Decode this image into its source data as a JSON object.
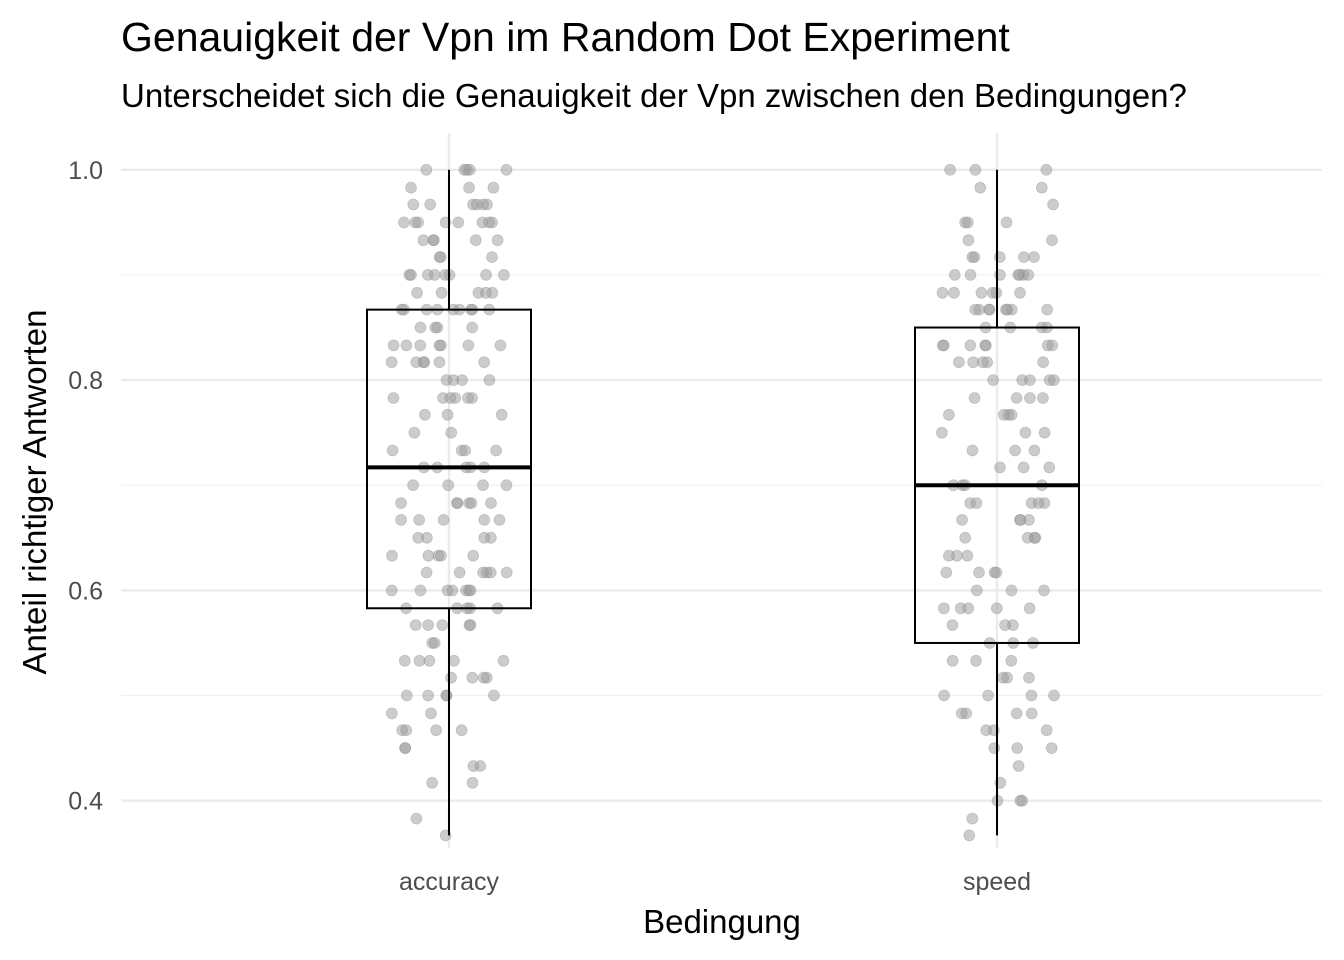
{
  "chart_data": {
    "type": "boxplot",
    "title": "Genauigkeit der Vpn im Random Dot Experiment",
    "subtitle": "Unterscheidet sich die Genauigkeit der Vpn zwischen den Bedingungen?",
    "xlabel": "Bedingung",
    "ylabel": "Anteil richtiger Antworten",
    "ylim": [
      0.355,
      1.035
    ],
    "yticks": [
      0.4,
      0.6,
      0.8,
      1.0
    ],
    "ytick_labels": [
      "0.4",
      "0.6",
      "0.8",
      "1.0"
    ],
    "categories": [
      "accuracy",
      "speed"
    ],
    "grid": true,
    "boxes": [
      {
        "category": "accuracy",
        "min": 0.367,
        "q1": 0.583,
        "median": 0.717,
        "q3": 0.867,
        "max": 1.0
      },
      {
        "category": "speed",
        "min": 0.367,
        "q1": 0.55,
        "median": 0.7,
        "q3": 0.85,
        "max": 1.0
      }
    ],
    "points": {
      "accuracy": [
        1.0,
        1.0,
        1.0,
        1.0,
        1.0,
        0.983,
        0.983,
        0.983,
        0.967,
        0.967,
        0.967,
        0.967,
        0.967,
        0.967,
        0.95,
        0.95,
        0.95,
        0.95,
        0.95,
        0.95,
        0.95,
        0.95,
        0.933,
        0.933,
        0.933,
        0.933,
        0.933,
        0.917,
        0.917,
        0.917,
        0.9,
        0.9,
        0.9,
        0.9,
        0.9,
        0.9,
        0.9,
        0.9,
        0.883,
        0.883,
        0.883,
        0.883,
        0.883,
        0.867,
        0.867,
        0.867,
        0.867,
        0.867,
        0.867,
        0.867,
        0.867,
        0.867,
        0.85,
        0.85,
        0.85,
        0.85,
        0.833,
        0.833,
        0.833,
        0.833,
        0.833,
        0.833,
        0.833,
        0.817,
        0.817,
        0.817,
        0.817,
        0.817,
        0.817,
        0.8,
        0.8,
        0.8,
        0.8,
        0.783,
        0.783,
        0.783,
        0.783,
        0.783,
        0.783,
        0.767,
        0.767,
        0.767,
        0.75,
        0.75,
        0.733,
        0.733,
        0.733,
        0.733,
        0.717,
        0.717,
        0.717,
        0.717,
        0.717,
        0.7,
        0.7,
        0.7,
        0.7,
        0.683,
        0.683,
        0.683,
        0.683,
        0.683,
        0.683,
        0.667,
        0.667,
        0.667,
        0.667,
        0.667,
        0.65,
        0.65,
        0.65,
        0.65,
        0.633,
        0.633,
        0.633,
        0.633,
        0.633,
        0.617,
        0.617,
        0.617,
        0.617,
        0.617,
        0.617,
        0.6,
        0.6,
        0.6,
        0.6,
        0.6,
        0.6,
        0.6,
        0.583,
        0.583,
        0.583,
        0.583,
        0.583,
        0.567,
        0.567,
        0.567,
        0.567,
        0.567,
        0.55,
        0.55,
        0.533,
        0.533,
        0.533,
        0.533,
        0.533,
        0.517,
        0.517,
        0.517,
        0.517,
        0.5,
        0.5,
        0.5,
        0.5,
        0.5,
        0.483,
        0.483,
        0.467,
        0.467,
        0.467,
        0.467,
        0.45,
        0.45,
        0.433,
        0.433,
        0.417,
        0.417,
        0.383,
        0.367
      ],
      "speed": [
        1.0,
        1.0,
        1.0,
        0.983,
        0.983,
        0.967,
        0.95,
        0.95,
        0.95,
        0.933,
        0.933,
        0.917,
        0.917,
        0.917,
        0.917,
        0.917,
        0.9,
        0.9,
        0.9,
        0.9,
        0.9,
        0.9,
        0.9,
        0.883,
        0.883,
        0.883,
        0.883,
        0.883,
        0.883,
        0.867,
        0.867,
        0.867,
        0.867,
        0.867,
        0.867,
        0.867,
        0.867,
        0.85,
        0.85,
        0.85,
        0.85,
        0.833,
        0.833,
        0.833,
        0.833,
        0.833,
        0.833,
        0.833,
        0.817,
        0.817,
        0.817,
        0.817,
        0.817,
        0.8,
        0.8,
        0.8,
        0.8,
        0.8,
        0.783,
        0.783,
        0.783,
        0.783,
        0.767,
        0.767,
        0.767,
        0.767,
        0.75,
        0.75,
        0.75,
        0.733,
        0.733,
        0.733,
        0.717,
        0.717,
        0.717,
        0.7,
        0.7,
        0.7,
        0.7,
        0.683,
        0.683,
        0.683,
        0.683,
        0.683,
        0.667,
        0.667,
        0.667,
        0.667,
        0.65,
        0.65,
        0.65,
        0.65,
        0.633,
        0.633,
        0.633,
        0.617,
        0.617,
        0.617,
        0.617,
        0.6,
        0.6,
        0.6,
        0.583,
        0.583,
        0.583,
        0.583,
        0.583,
        0.567,
        0.567,
        0.567,
        0.55,
        0.55,
        0.55,
        0.533,
        0.533,
        0.533,
        0.517,
        0.517,
        0.517,
        0.5,
        0.5,
        0.5,
        0.5,
        0.483,
        0.483,
        0.483,
        0.483,
        0.467,
        0.467,
        0.467,
        0.45,
        0.45,
        0.45,
        0.433,
        0.417,
        0.4,
        0.4,
        0.4,
        0.383,
        0.367
      ]
    },
    "point_color": "#999999",
    "box_color": "#000000"
  }
}
